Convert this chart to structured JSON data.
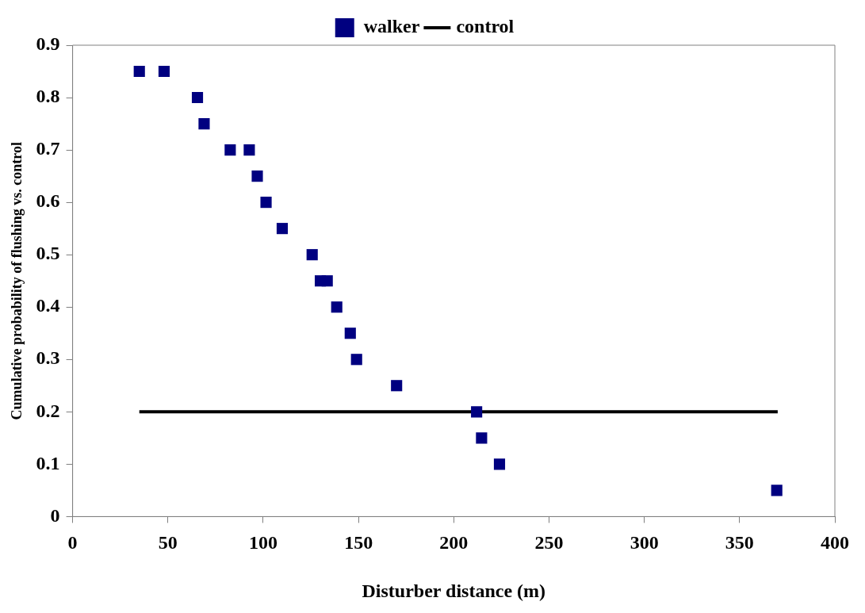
{
  "chart_data": {
    "type": "scatter",
    "xlabel": "Disturber distance (m)",
    "ylabel": "Cumulative probability of flushing vs. control",
    "xlim": [
      0,
      400
    ],
    "xticks": [
      0,
      50,
      100,
      150,
      200,
      250,
      300,
      350,
      400
    ],
    "ylim": [
      0,
      0.9
    ],
    "yticks": [
      0,
      0.1,
      0.2,
      0.3,
      0.4,
      0.5,
      0.6,
      0.7,
      0.8,
      0.9
    ],
    "grid": false,
    "legend": "top",
    "series": [
      {
        "name": "walker",
        "type": "scatter",
        "color": "#000080",
        "marker": "square",
        "x": [
          35,
          48,
          65.5,
          69,
          82.7,
          92.7,
          96.9,
          101.5,
          110,
          125.7,
          130,
          133.6,
          138.6,
          145.7,
          149,
          170,
          212,
          214.6,
          224,
          369.5
        ],
        "values": [
          0.85,
          0.85,
          0.8,
          0.75,
          0.7,
          0.7,
          0.65,
          0.6,
          0.55,
          0.5,
          0.45,
          0.45,
          0.4,
          0.35,
          0.3,
          0.25,
          0.2,
          0.15,
          0.1,
          0.05
        ]
      },
      {
        "name": "control",
        "type": "line",
        "color": "#000000",
        "marker": "none",
        "line_style": "solid",
        "x": [
          35,
          370
        ],
        "values": [
          0.2,
          0.2
        ]
      }
    ]
  }
}
